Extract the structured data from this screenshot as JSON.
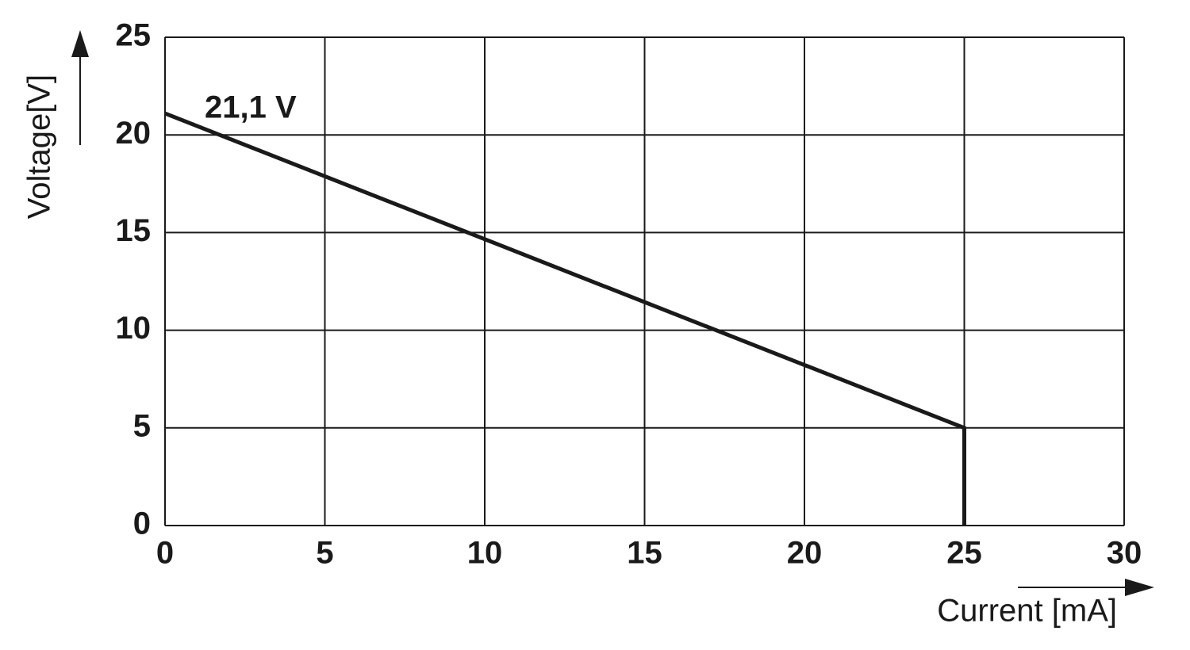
{
  "chart_data": {
    "type": "line",
    "x_label": "Current [mA]",
    "y_label": "Voltage[V]",
    "annotation": "21,1 V",
    "x": [
      0,
      25,
      25
    ],
    "values": [
      21.1,
      5,
      0
    ],
    "color": "#1a1a1a",
    "xlim": [
      0,
      30
    ],
    "xticks": [
      0,
      5,
      10,
      15,
      20,
      25,
      30
    ],
    "ylim": [
      0,
      25
    ],
    "yticks": [
      0,
      5,
      10,
      15,
      20,
      25
    ],
    "grid": true
  }
}
